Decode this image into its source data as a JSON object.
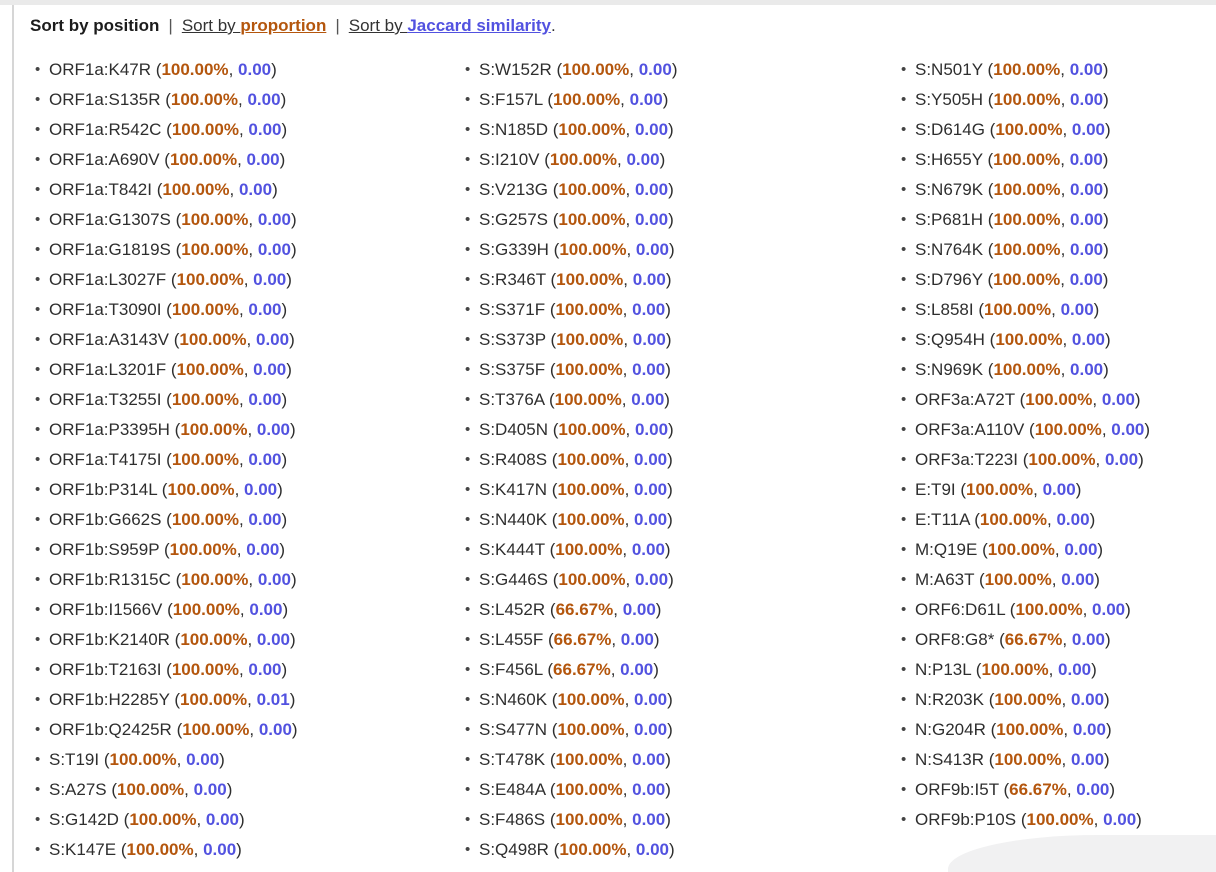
{
  "header": {
    "active_label": "Sort by position",
    "separator": "|",
    "proportion_link": {
      "prefix": "Sort by ",
      "keyword": "proportion"
    },
    "jaccard_link": {
      "prefix": "Sort by ",
      "keyword": "Jaccard similarity"
    },
    "trailing_period": "."
  },
  "punct": {
    "open": " (",
    "comma": ", ",
    "close": ")"
  },
  "colors": {
    "proportion_accent": "#b4560d",
    "jaccard_accent": "#5252e0",
    "text": "#2e2e2e",
    "top_strip": "#eaeaea",
    "left_border": "#d6d6d6",
    "corner_panel": "#f1f1f2"
  },
  "columns": [
    [
      {
        "mutation": "ORF1a:K47R",
        "proportion": "100.00%",
        "jaccard": "0.00"
      },
      {
        "mutation": "ORF1a:S135R",
        "proportion": "100.00%",
        "jaccard": "0.00"
      },
      {
        "mutation": "ORF1a:R542C",
        "proportion": "100.00%",
        "jaccard": "0.00"
      },
      {
        "mutation": "ORF1a:A690V",
        "proportion": "100.00%",
        "jaccard": "0.00"
      },
      {
        "mutation": "ORF1a:T842I",
        "proportion": "100.00%",
        "jaccard": "0.00"
      },
      {
        "mutation": "ORF1a:G1307S",
        "proportion": "100.00%",
        "jaccard": "0.00"
      },
      {
        "mutation": "ORF1a:G1819S",
        "proportion": "100.00%",
        "jaccard": "0.00"
      },
      {
        "mutation": "ORF1a:L3027F",
        "proportion": "100.00%",
        "jaccard": "0.00"
      },
      {
        "mutation": "ORF1a:T3090I",
        "proportion": "100.00%",
        "jaccard": "0.00"
      },
      {
        "mutation": "ORF1a:A3143V",
        "proportion": "100.00%",
        "jaccard": "0.00"
      },
      {
        "mutation": "ORF1a:L3201F",
        "proportion": "100.00%",
        "jaccard": "0.00"
      },
      {
        "mutation": "ORF1a:T3255I",
        "proportion": "100.00%",
        "jaccard": "0.00"
      },
      {
        "mutation": "ORF1a:P3395H",
        "proportion": "100.00%",
        "jaccard": "0.00"
      },
      {
        "mutation": "ORF1a:T4175I",
        "proportion": "100.00%",
        "jaccard": "0.00"
      },
      {
        "mutation": "ORF1b:P314L",
        "proportion": "100.00%",
        "jaccard": "0.00"
      },
      {
        "mutation": "ORF1b:G662S",
        "proportion": "100.00%",
        "jaccard": "0.00"
      },
      {
        "mutation": "ORF1b:S959P",
        "proportion": "100.00%",
        "jaccard": "0.00"
      },
      {
        "mutation": "ORF1b:R1315C",
        "proportion": "100.00%",
        "jaccard": "0.00"
      },
      {
        "mutation": "ORF1b:I1566V",
        "proportion": "100.00%",
        "jaccard": "0.00"
      },
      {
        "mutation": "ORF1b:K2140R",
        "proportion": "100.00%",
        "jaccard": "0.00"
      },
      {
        "mutation": "ORF1b:T2163I",
        "proportion": "100.00%",
        "jaccard": "0.00"
      },
      {
        "mutation": "ORF1b:H2285Y",
        "proportion": "100.00%",
        "jaccard": "0.01"
      },
      {
        "mutation": "ORF1b:Q2425R",
        "proportion": "100.00%",
        "jaccard": "0.00"
      },
      {
        "mutation": "S:T19I",
        "proportion": "100.00%",
        "jaccard": "0.00"
      },
      {
        "mutation": "S:A27S",
        "proportion": "100.00%",
        "jaccard": "0.00"
      },
      {
        "mutation": "S:G142D",
        "proportion": "100.00%",
        "jaccard": "0.00"
      },
      {
        "mutation": "S:K147E",
        "proportion": "100.00%",
        "jaccard": "0.00"
      }
    ],
    [
      {
        "mutation": "S:W152R",
        "proportion": "100.00%",
        "jaccard": "0.00"
      },
      {
        "mutation": "S:F157L",
        "proportion": "100.00%",
        "jaccard": "0.00"
      },
      {
        "mutation": "S:N185D",
        "proportion": "100.00%",
        "jaccard": "0.00"
      },
      {
        "mutation": "S:I210V",
        "proportion": "100.00%",
        "jaccard": "0.00"
      },
      {
        "mutation": "S:V213G",
        "proportion": "100.00%",
        "jaccard": "0.00"
      },
      {
        "mutation": "S:G257S",
        "proportion": "100.00%",
        "jaccard": "0.00"
      },
      {
        "mutation": "S:G339H",
        "proportion": "100.00%",
        "jaccard": "0.00"
      },
      {
        "mutation": "S:R346T",
        "proportion": "100.00%",
        "jaccard": "0.00"
      },
      {
        "mutation": "S:S371F",
        "proportion": "100.00%",
        "jaccard": "0.00"
      },
      {
        "mutation": "S:S373P",
        "proportion": "100.00%",
        "jaccard": "0.00"
      },
      {
        "mutation": "S:S375F",
        "proportion": "100.00%",
        "jaccard": "0.00"
      },
      {
        "mutation": "S:T376A",
        "proportion": "100.00%",
        "jaccard": "0.00"
      },
      {
        "mutation": "S:D405N",
        "proportion": "100.00%",
        "jaccard": "0.00"
      },
      {
        "mutation": "S:R408S",
        "proportion": "100.00%",
        "jaccard": "0.00"
      },
      {
        "mutation": "S:K417N",
        "proportion": "100.00%",
        "jaccard": "0.00"
      },
      {
        "mutation": "S:N440K",
        "proportion": "100.00%",
        "jaccard": "0.00"
      },
      {
        "mutation": "S:K444T",
        "proportion": "100.00%",
        "jaccard": "0.00"
      },
      {
        "mutation": "S:G446S",
        "proportion": "100.00%",
        "jaccard": "0.00"
      },
      {
        "mutation": "S:L452R",
        "proportion": "66.67%",
        "jaccard": "0.00"
      },
      {
        "mutation": "S:L455F",
        "proportion": "66.67%",
        "jaccard": "0.00"
      },
      {
        "mutation": "S:F456L",
        "proportion": "66.67%",
        "jaccard": "0.00"
      },
      {
        "mutation": "S:N460K",
        "proportion": "100.00%",
        "jaccard": "0.00"
      },
      {
        "mutation": "S:S477N",
        "proportion": "100.00%",
        "jaccard": "0.00"
      },
      {
        "mutation": "S:T478K",
        "proportion": "100.00%",
        "jaccard": "0.00"
      },
      {
        "mutation": "S:E484A",
        "proportion": "100.00%",
        "jaccard": "0.00"
      },
      {
        "mutation": "S:F486S",
        "proportion": "100.00%",
        "jaccard": "0.00"
      },
      {
        "mutation": "S:Q498R",
        "proportion": "100.00%",
        "jaccard": "0.00"
      }
    ],
    [
      {
        "mutation": "S:N501Y",
        "proportion": "100.00%",
        "jaccard": "0.00"
      },
      {
        "mutation": "S:Y505H",
        "proportion": "100.00%",
        "jaccard": "0.00"
      },
      {
        "mutation": "S:D614G",
        "proportion": "100.00%",
        "jaccard": "0.00"
      },
      {
        "mutation": "S:H655Y",
        "proportion": "100.00%",
        "jaccard": "0.00"
      },
      {
        "mutation": "S:N679K",
        "proportion": "100.00%",
        "jaccard": "0.00"
      },
      {
        "mutation": "S:P681H",
        "proportion": "100.00%",
        "jaccard": "0.00"
      },
      {
        "mutation": "S:N764K",
        "proportion": "100.00%",
        "jaccard": "0.00"
      },
      {
        "mutation": "S:D796Y",
        "proportion": "100.00%",
        "jaccard": "0.00"
      },
      {
        "mutation": "S:L858I",
        "proportion": "100.00%",
        "jaccard": "0.00"
      },
      {
        "mutation": "S:Q954H",
        "proportion": "100.00%",
        "jaccard": "0.00"
      },
      {
        "mutation": "S:N969K",
        "proportion": "100.00%",
        "jaccard": "0.00"
      },
      {
        "mutation": "ORF3a:A72T",
        "proportion": "100.00%",
        "jaccard": "0.00"
      },
      {
        "mutation": "ORF3a:A110V",
        "proportion": "100.00%",
        "jaccard": "0.00"
      },
      {
        "mutation": "ORF3a:T223I",
        "proportion": "100.00%",
        "jaccard": "0.00"
      },
      {
        "mutation": "E:T9I",
        "proportion": "100.00%",
        "jaccard": "0.00"
      },
      {
        "mutation": "E:T11A",
        "proportion": "100.00%",
        "jaccard": "0.00"
      },
      {
        "mutation": "M:Q19E",
        "proportion": "100.00%",
        "jaccard": "0.00"
      },
      {
        "mutation": "M:A63T",
        "proportion": "100.00%",
        "jaccard": "0.00"
      },
      {
        "mutation": "ORF6:D61L",
        "proportion": "100.00%",
        "jaccard": "0.00"
      },
      {
        "mutation": "ORF8:G8*",
        "proportion": "66.67%",
        "jaccard": "0.00"
      },
      {
        "mutation": "N:P13L",
        "proportion": "100.00%",
        "jaccard": "0.00"
      },
      {
        "mutation": "N:R203K",
        "proportion": "100.00%",
        "jaccard": "0.00"
      },
      {
        "mutation": "N:G204R",
        "proportion": "100.00%",
        "jaccard": "0.00"
      },
      {
        "mutation": "N:S413R",
        "proportion": "100.00%",
        "jaccard": "0.00"
      },
      {
        "mutation": "ORF9b:I5T",
        "proportion": "66.67%",
        "jaccard": "0.00"
      },
      {
        "mutation": "ORF9b:P10S",
        "proportion": "100.00%",
        "jaccard": "0.00"
      }
    ]
  ]
}
